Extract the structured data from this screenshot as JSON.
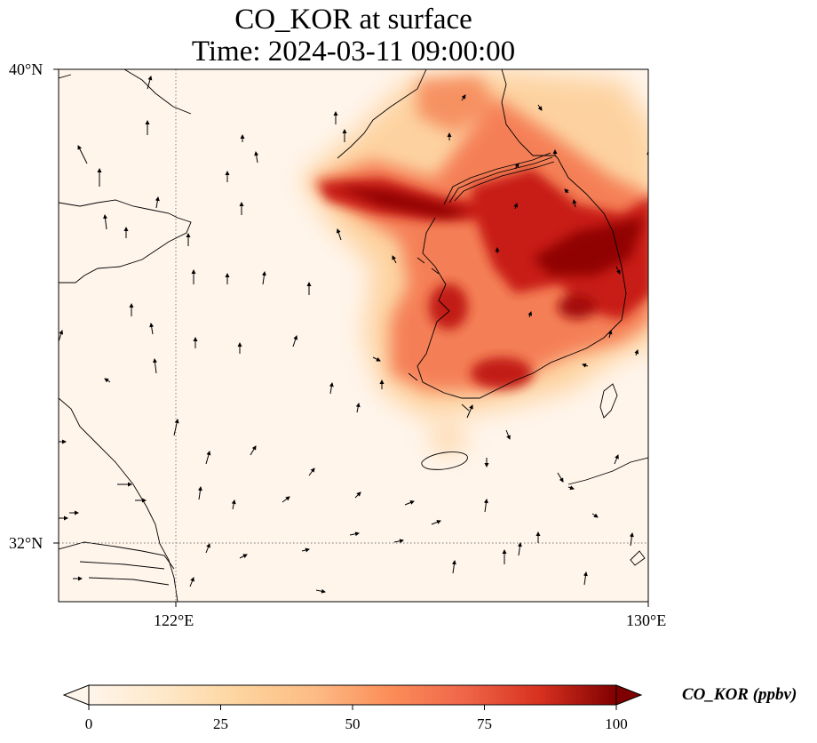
{
  "title": {
    "line1": "CO_KOR at surface",
    "line2": "Time: 2024-03-11 09:00:00"
  },
  "map": {
    "lat_range": [
      31,
      40
    ],
    "lon_range": [
      120,
      130
    ],
    "lat_ticks": [
      {
        "value": 40,
        "label": "40°N"
      },
      {
        "value": 32,
        "label": "32°N"
      }
    ],
    "lon_ticks": [
      {
        "value": 122,
        "label": "122°E"
      },
      {
        "value": 130,
        "label": "130°E"
      }
    ],
    "gridlines": {
      "lon": [
        122
      ],
      "lat": [
        32
      ],
      "style": "dotted"
    },
    "overlay": "wind vectors (arrows)",
    "background_color": "#fff5eb"
  },
  "colorbar": {
    "label": "CO_KOR (ppbv)",
    "colormap": "OrRd",
    "range": [
      0,
      100
    ],
    "extend": "both",
    "ticks": [
      {
        "value": 0,
        "label": "0"
      },
      {
        "value": 25,
        "label": "25"
      },
      {
        "value": 50,
        "label": "50"
      },
      {
        "value": 75,
        "label": "75"
      },
      {
        "value": 100,
        "label": "100"
      }
    ],
    "colors": [
      "#fff5eb",
      "#fdd49e",
      "#fdbb84",
      "#fc8d59",
      "#ef6548",
      "#d7301f",
      "#b30000",
      "#7f0000"
    ]
  }
}
